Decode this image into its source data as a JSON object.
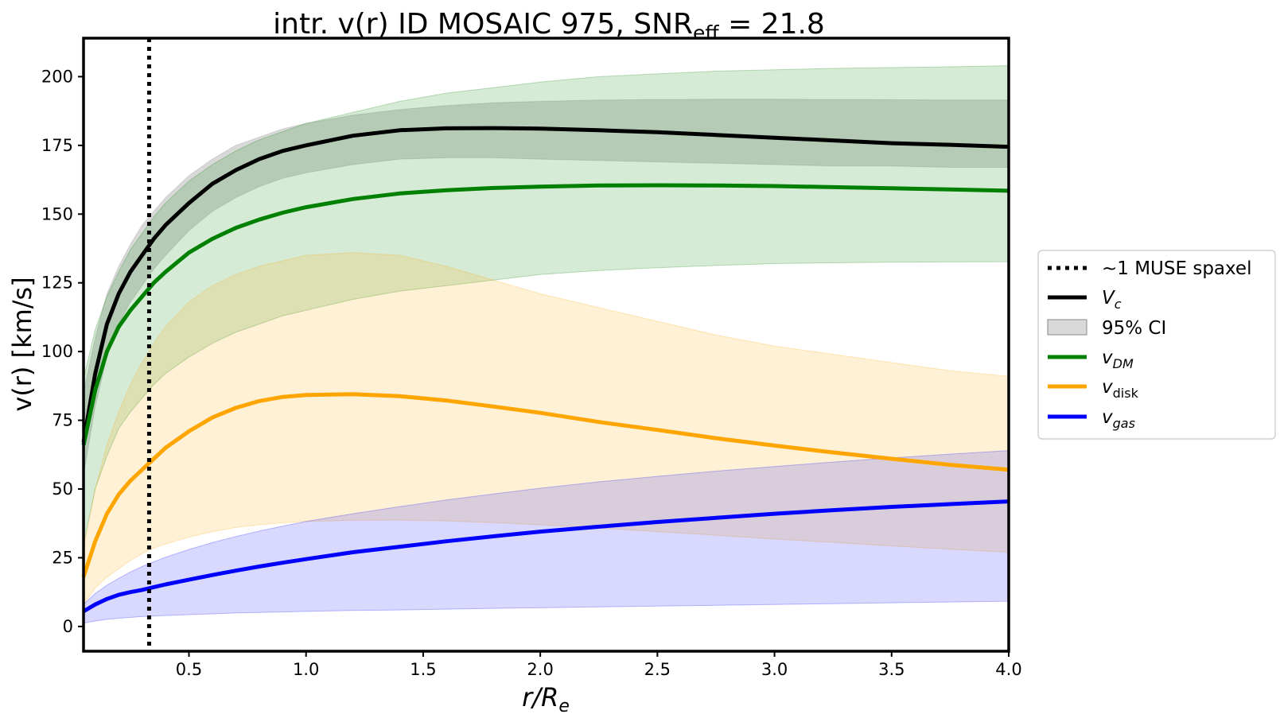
{
  "chart_data": {
    "type": "line",
    "title": "intr. v(r) ID MOSAIC 975, SNR",
    "title_sub": "eff",
    "title_tail": " = 21.8",
    "xlabel_main": "r/R",
    "xlabel_sub": "e",
    "ylabel": "v(r) [km/s]",
    "xlim": [
      0.05,
      4.0
    ],
    "ylim": [
      -9,
      214
    ],
    "xticks": [
      0.5,
      1.0,
      1.5,
      2.0,
      2.5,
      3.0,
      3.5,
      4.0
    ],
    "xtick_labels": [
      "0.5",
      "1.0",
      "1.5",
      "2.0",
      "2.5",
      "3.0",
      "3.5",
      "4.0"
    ],
    "yticks": [
      0,
      25,
      50,
      75,
      100,
      125,
      150,
      175,
      200
    ],
    "ytick_labels": [
      "0",
      "25",
      "50",
      "75",
      "100",
      "125",
      "150",
      "175",
      "200"
    ],
    "vline": {
      "x": 0.33,
      "label": "~1 MUSE spaxel",
      "style": "dotted",
      "color": "#000000"
    },
    "x": [
      0.05,
      0.1,
      0.15,
      0.2,
      0.25,
      0.3,
      0.35,
      0.4,
      0.5,
      0.6,
      0.7,
      0.8,
      0.9,
      1.0,
      1.2,
      1.4,
      1.6,
      1.8,
      2.0,
      2.25,
      2.5,
      2.75,
      3.0,
      3.25,
      3.5,
      3.75,
      4.0
    ],
    "series": [
      {
        "name": "V_c",
        "legend_main": "V",
        "legend_sub": "c",
        "color": "#000000",
        "values": [
          67,
          92,
          110,
          121,
          129,
          135,
          141,
          146,
          154,
          161,
          166,
          170,
          173,
          175,
          178.5,
          180.5,
          181.2,
          181.3,
          181.1,
          180.5,
          179.8,
          178.8,
          177.8,
          176.8,
          175.8,
          175.2,
          174.5
        ],
        "band_upper": [
          85,
          105,
          121,
          131,
          139,
          146,
          151,
          156,
          164,
          170,
          175,
          178,
          181,
          183,
          186,
          188,
          189.5,
          190.5,
          191,
          191.5,
          191.7,
          191.8,
          191.8,
          191.7,
          191.6,
          191.5,
          191.5
        ],
        "band_lower": [
          55,
          80,
          98,
          110,
          118,
          124,
          130,
          135,
          144,
          151,
          156,
          160,
          163,
          165,
          168,
          170,
          170.5,
          170.5,
          170,
          169.5,
          169,
          168.5,
          168,
          167.5,
          167.5,
          167,
          167
        ],
        "band_color": "#808080",
        "band_opacity": 0.3
      },
      {
        "name": "v_DM",
        "legend_main": "v",
        "legend_sub": "DM",
        "color": "#008000",
        "values": [
          66,
          86,
          100,
          109,
          115,
          120,
          125,
          129,
          136,
          141,
          145,
          148,
          150.5,
          152.5,
          155.5,
          157.5,
          158.7,
          159.5,
          160,
          160.4,
          160.5,
          160.4,
          160.2,
          159.8,
          159.4,
          159,
          158.5
        ],
        "band_upper": [
          90,
          108,
          120,
          129,
          137,
          143,
          149,
          154,
          162,
          168,
          173,
          177,
          180,
          183,
          187,
          191,
          194,
          196,
          198,
          200,
          201,
          202,
          202.5,
          203,
          203.3,
          203.6,
          204
        ],
        "band_lower": [
          30,
          50,
          62,
          72,
          78,
          83,
          88,
          92,
          98,
          103,
          107,
          110,
          113,
          115,
          119,
          122,
          124,
          126,
          128,
          129.5,
          130.5,
          131.3,
          132,
          132.3,
          132.5,
          132.6,
          132.7
        ],
        "band_color": "#008000",
        "band_opacity": 0.16
      },
      {
        "name": "v_disk",
        "legend_main": "v",
        "legend_sub": "disk",
        "color": "#ffa500",
        "values": [
          18,
          31,
          41,
          48,
          53,
          57,
          61,
          65,
          71,
          76,
          79.5,
          82,
          83.5,
          84.2,
          84.5,
          83.8,
          82.2,
          80,
          77.7,
          74.4,
          71.5,
          68.5,
          65.8,
          63.3,
          61,
          58.8,
          57
        ],
        "band_upper": [
          28,
          50,
          66,
          78,
          88,
          96,
          103,
          109,
          118,
          124,
          128,
          131,
          133,
          135,
          136,
          135,
          131,
          126,
          121,
          116,
          111,
          106,
          102,
          99,
          96,
          93,
          91
        ],
        "band_lower": [
          8,
          14,
          18,
          21,
          24,
          26.5,
          28.5,
          30,
          32.5,
          34.5,
          36,
          37,
          37.7,
          38.2,
          38.6,
          38.7,
          38.4,
          37.8,
          37,
          35.8,
          34.5,
          33.2,
          31.8,
          30.6,
          29.3,
          28.1,
          27
        ],
        "band_color": "#ffa500",
        "band_opacity": 0.16
      },
      {
        "name": "v_gas",
        "legend_main": "v",
        "legend_sub": "gas",
        "color": "#0000ff",
        "values": [
          5.5,
          8,
          10,
          11.5,
          12.5,
          13.3,
          14.3,
          15.3,
          17,
          18.7,
          20.3,
          21.8,
          23.2,
          24.5,
          27,
          29,
          31,
          32.8,
          34.5,
          36.3,
          38,
          39.5,
          41,
          42.3,
          43.5,
          44.5,
          45.5
        ],
        "band_upper": [
          8,
          12,
          15,
          17.5,
          19.8,
          21.8,
          23.5,
          25.2,
          28,
          30.5,
          32.7,
          34.7,
          36.5,
          38.2,
          41,
          43.6,
          46,
          48.2,
          50.3,
          52.6,
          54.6,
          56.5,
          58.2,
          59.8,
          61.3,
          62.7,
          64
        ],
        "band_lower": [
          1.2,
          2,
          2.6,
          3,
          3.3,
          3.6,
          3.8,
          4,
          4.3,
          4.6,
          4.9,
          5.1,
          5.3,
          5.5,
          5.8,
          6,
          6.3,
          6.6,
          6.8,
          7.1,
          7.4,
          7.7,
          8,
          8.3,
          8.6,
          8.9,
          9.2
        ],
        "band_color": "#0000ff",
        "band_opacity": 0.15
      }
    ],
    "legend": {
      "position": "center-right",
      "vline_label": "~1 MUSE spaxel",
      "ci_label": "95% CI",
      "ci_color": "#808080"
    }
  }
}
